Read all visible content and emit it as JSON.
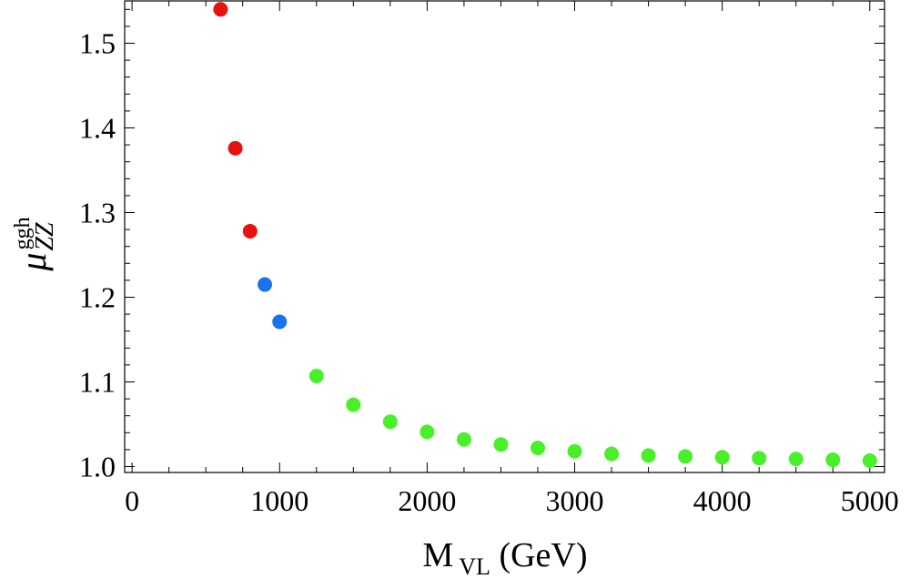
{
  "chart_data": {
    "type": "scatter",
    "title": "",
    "xlabel": {
      "main": "M",
      "sub": "VL",
      "unit": " (GeV)"
    },
    "ylabel": {
      "main": "μ",
      "sub": "ZZ",
      "sup": "ggh"
    },
    "xlim": [
      -50,
      5100
    ],
    "ylim": [
      0.993,
      1.55
    ],
    "x_ticks": [
      0,
      1000,
      2000,
      3000,
      4000,
      5000
    ],
    "x_tick_labels": [
      "0",
      "1000",
      "2000",
      "3000",
      "4000",
      "5000"
    ],
    "y_ticks": [
      1.0,
      1.1,
      1.2,
      1.3,
      1.4,
      1.5
    ],
    "y_tick_labels": [
      "1.0",
      "1.1",
      "1.2",
      "1.3",
      "1.4",
      "1.5"
    ],
    "grid": false,
    "series": [
      {
        "name": "red",
        "color": "#e8120f",
        "x": [
          600,
          700,
          800
        ],
        "y": [
          1.54,
          1.376,
          1.278
        ]
      },
      {
        "name": "blue",
        "color": "#1a73ea",
        "x": [
          900,
          1000
        ],
        "y": [
          1.215,
          1.171
        ]
      },
      {
        "name": "green",
        "color": "#49f029",
        "x": [
          1250,
          1500,
          1750,
          2000,
          2250,
          2500,
          2750,
          3000,
          3250,
          3500,
          3750,
          4000,
          4250,
          4500,
          4750,
          5000
        ],
        "y": [
          1.107,
          1.073,
          1.053,
          1.041,
          1.032,
          1.026,
          1.022,
          1.018,
          1.015,
          1.013,
          1.012,
          1.011,
          1.01,
          1.009,
          1.008,
          1.007
        ]
      }
    ]
  }
}
